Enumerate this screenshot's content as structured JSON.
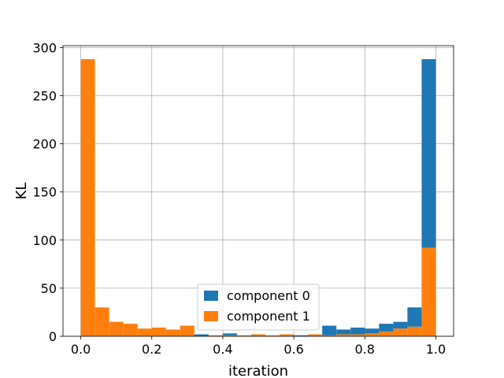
{
  "chart_data": {
    "type": "bar",
    "title": "",
    "xlabel": "iteration",
    "ylabel": "KL",
    "xlim": [
      -0.05,
      1.05
    ],
    "ylim": [
      0,
      302
    ],
    "x_ticks": [
      0.0,
      0.2,
      0.4,
      0.6,
      0.8,
      1.0
    ],
    "x_tick_labels": [
      "0.0",
      "0.2",
      "0.4",
      "0.6",
      "0.8",
      "1.0"
    ],
    "y_ticks": [
      0,
      50,
      100,
      150,
      200,
      250,
      300
    ],
    "y_tick_labels": [
      "0",
      "50",
      "100",
      "150",
      "200",
      "250",
      "300"
    ],
    "grid": true,
    "stacked": true,
    "bin_edges": [
      0.0,
      0.04,
      0.08,
      0.12,
      0.16,
      0.2,
      0.24,
      0.28,
      0.32,
      0.36,
      0.4,
      0.44,
      0.48,
      0.52,
      0.56,
      0.6,
      0.64,
      0.68,
      0.72,
      0.76,
      0.8,
      0.84,
      0.88,
      0.92,
      0.96,
      1.0
    ],
    "series": [
      {
        "name": "component 1",
        "color": "#ff7f0e",
        "values": [
          288,
          30,
          15,
          13,
          8,
          9,
          7,
          11,
          0,
          1,
          1,
          1,
          2,
          1,
          2,
          0,
          2,
          1,
          2,
          2,
          3,
          5,
          8,
          10,
          92
        ]
      },
      {
        "name": "component 0",
        "color": "#1f77b4",
        "values": [
          0,
          0,
          0,
          0,
          0,
          0,
          0,
          0,
          2,
          0,
          2,
          0,
          0,
          0,
          0,
          1,
          0,
          10,
          5,
          7,
          5,
          8,
          7,
          20,
          196
        ]
      }
    ],
    "legend": {
      "position": "bottom-center",
      "entries": [
        "component 0",
        "component 1"
      ]
    }
  }
}
